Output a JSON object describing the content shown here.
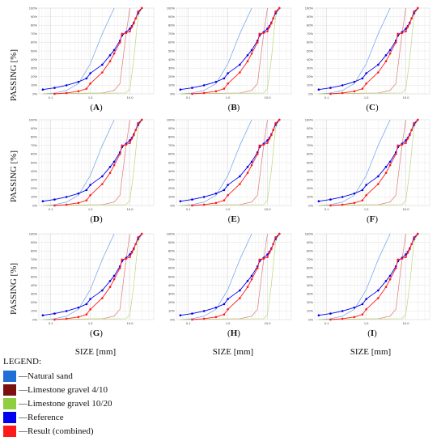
{
  "figure": {
    "y_axis_title": "PASSING [%]",
    "x_axis_title": "SIZE [mm]",
    "panel_labels": [
      "A",
      "B",
      "C",
      "D",
      "E",
      "F",
      "G",
      "H",
      "I"
    ]
  },
  "legend": {
    "title": "LEGEND:",
    "items": [
      {
        "label": "Natural sand",
        "color": "#1f6fd6"
      },
      {
        "label": "Limestone gravel 4/10",
        "color": "#7a1010"
      },
      {
        "label": "Limestone gravel 10/20",
        "color": "#8fcf3f"
      },
      {
        "label": "Reference",
        "color": "#0000ee"
      },
      {
        "label": "Result (combined)",
        "color": "#ff1a1a"
      }
    ]
  },
  "chart_data": {
    "type": "line",
    "x_scale": "log",
    "x_tick_labels": [
      "0.1",
      "1.0",
      "10.0"
    ],
    "x_ticks": [
      0.1,
      1,
      10
    ],
    "y_tick_labels": [
      "0%",
      "10%",
      "20%",
      "30%",
      "40%",
      "50%",
      "60%",
      "70%",
      "80%",
      "90%",
      "100%"
    ],
    "xlim": [
      0.05,
      40
    ],
    "ylim": [
      0,
      100
    ],
    "grid": true,
    "series": [
      {
        "name": "Natural sand",
        "color": "#6a9ee8",
        "marker": false,
        "x": [
          0.063,
          0.125,
          0.25,
          0.5,
          1,
          2,
          4
        ],
        "y": [
          0,
          1,
          4,
          12,
          35,
          70,
          100
        ]
      },
      {
        "name": "Limestone gravel 4/10",
        "color": "#e07a7a",
        "marker": false,
        "x": [
          0.063,
          2,
          4,
          5.6,
          8,
          10
        ],
        "y": [
          0,
          1,
          4,
          12,
          70,
          100
        ]
      },
      {
        "name": "Limestone gravel 10/20",
        "color": "#b8d97a",
        "marker": false,
        "x": [
          0.063,
          8,
          10,
          12.5,
          16,
          20
        ],
        "y": [
          0,
          1,
          6,
          40,
          90,
          100
        ]
      },
      {
        "name": "Reference",
        "color": "#0000ee",
        "marker": true,
        "x": [
          0.063,
          0.125,
          0.25,
          0.5,
          0.8,
          1,
          2,
          3.15,
          4,
          5.6,
          6.3,
          8,
          10,
          11.2,
          12.5,
          14,
          16,
          20
        ],
        "y": [
          5,
          7,
          10,
          14,
          18,
          24,
          34,
          45,
          51,
          62,
          68,
          72,
          76,
          79,
          83,
          88,
          94,
          100
        ]
      },
      {
        "name": "Result (combined)",
        "color": "#ff1a1a",
        "marker": true,
        "x": [
          0.125,
          0.25,
          0.5,
          0.8,
          1,
          2,
          3.15,
          4,
          5.6,
          6.3,
          8,
          10,
          11.2,
          12.5,
          14,
          16,
          20
        ],
        "y": [
          0,
          1,
          3,
          6,
          12,
          25,
          38,
          47,
          60,
          70,
          71,
          73,
          78,
          82,
          88,
          96,
          100
        ]
      }
    ]
  }
}
